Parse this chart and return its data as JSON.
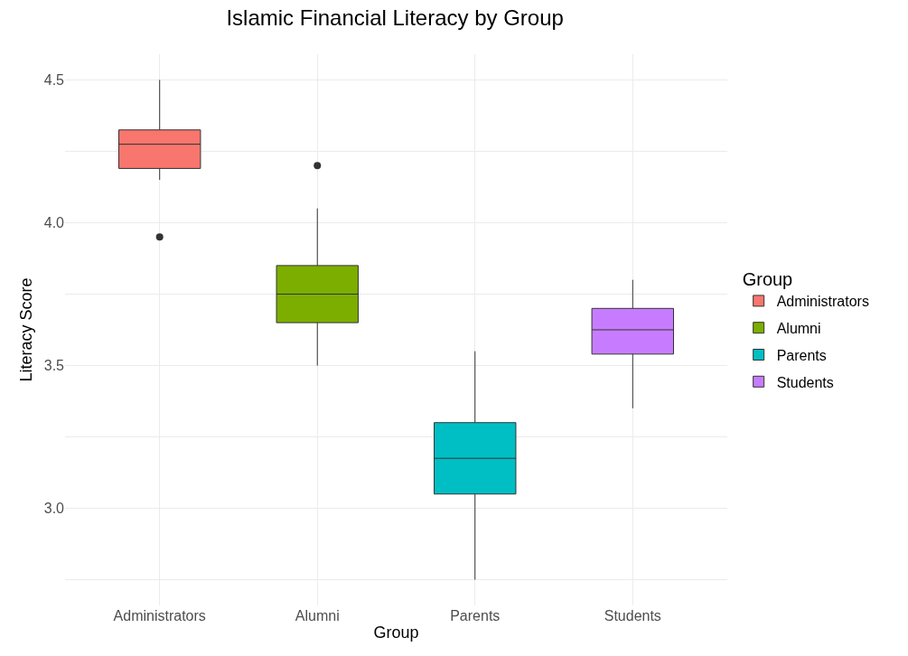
{
  "chart_data": {
    "type": "box",
    "title": "Islamic Financial Literacy by Group",
    "xlabel": "Group",
    "ylabel": "Literacy Score",
    "legend_title": "Group",
    "categories": [
      "Administrators",
      "Alumni",
      "Parents",
      "Students"
    ],
    "series": [
      {
        "name": "Administrators",
        "color": "#f8766d",
        "boxes": [
          {
            "low": 4.15,
            "q1": 4.19,
            "median": 4.275,
            "q3": 4.325,
            "high": 4.5,
            "outliers": [
              3.95
            ]
          },
          null,
          null,
          null
        ]
      },
      {
        "name": "Alumni",
        "color": "#7cae00",
        "boxes": [
          null,
          {
            "low": 3.5,
            "q1": 3.65,
            "median": 3.75,
            "q3": 3.85,
            "high": 4.05,
            "outliers": [
              4.2
            ]
          },
          null,
          null
        ]
      },
      {
        "name": "Parents",
        "color": "#00bfc4",
        "boxes": [
          null,
          null,
          {
            "low": 2.75,
            "q1": 3.05,
            "median": 3.175,
            "q3": 3.3,
            "high": 3.55
          },
          null
        ]
      },
      {
        "name": "Students",
        "color": "#c77cff",
        "boxes": [
          null,
          null,
          null,
          {
            "low": 3.35,
            "q1": 3.54,
            "median": 3.625,
            "q3": 3.7,
            "high": 3.8
          }
        ]
      }
    ],
    "ylim": [
      2.66,
      4.59
    ],
    "yticks": [
      {
        "value": 2.75,
        "label": null
      },
      {
        "value": 3,
        "label": "3.0"
      },
      {
        "value": 3.25,
        "label": null
      },
      3.5,
      {
        "value": 3.75,
        "label": null
      },
      {
        "value": 4,
        "label": "4.0"
      },
      {
        "value": 4.25,
        "label": null
      },
      4.5
    ],
    "grid": true,
    "legend": "right"
  }
}
